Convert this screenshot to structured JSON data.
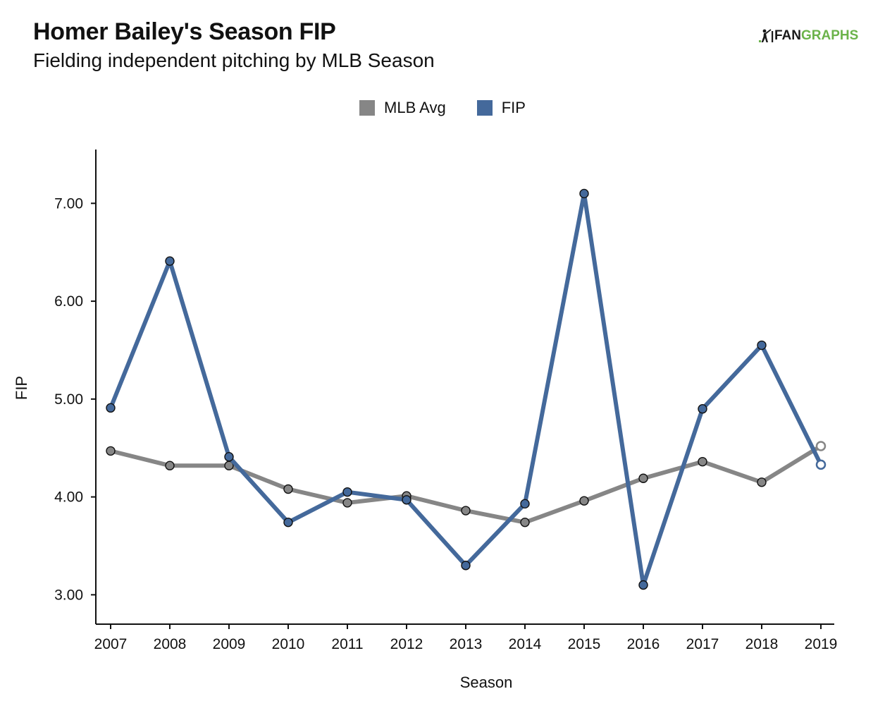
{
  "title": "Homer Bailey's Season FIP",
  "subtitle": "Fielding independent pitching by MLB Season",
  "logo": {
    "part1": "FAN",
    "part2": "GRAPHS",
    "icon": "fangraphs-batter-icon"
  },
  "colors": {
    "mlb_avg": "#868686",
    "fip": "#44699b",
    "logo_green": "#6bb34a"
  },
  "chart_data": {
    "type": "line",
    "title": "Homer Bailey's Season FIP",
    "subtitle": "Fielding independent pitching by MLB Season",
    "xlabel": "Season",
    "ylabel": "FIP",
    "x": [
      "2007",
      "2008",
      "2009",
      "2010",
      "2011",
      "2012",
      "2013",
      "2014",
      "2015",
      "2016",
      "2017",
      "2018",
      "2019"
    ],
    "yticks": [
      "3.00",
      "4.00",
      "5.00",
      "6.00",
      "7.00"
    ],
    "ylim": [
      2.7,
      7.55
    ],
    "grid": false,
    "legend_position": "top-center",
    "series": [
      {
        "name": "MLB Avg",
        "color": "#868686",
        "values": [
          4.47,
          4.32,
          4.32,
          4.08,
          3.94,
          4.01,
          3.86,
          3.74,
          3.96,
          4.19,
          4.36,
          4.15,
          4.52
        ],
        "open_last_point": true
      },
      {
        "name": "FIP",
        "color": "#44699b",
        "values": [
          4.91,
          6.41,
          4.41,
          3.74,
          4.05,
          3.97,
          3.3,
          3.93,
          7.1,
          3.1,
          4.9,
          5.55,
          4.33
        ],
        "open_last_point": true
      }
    ]
  }
}
